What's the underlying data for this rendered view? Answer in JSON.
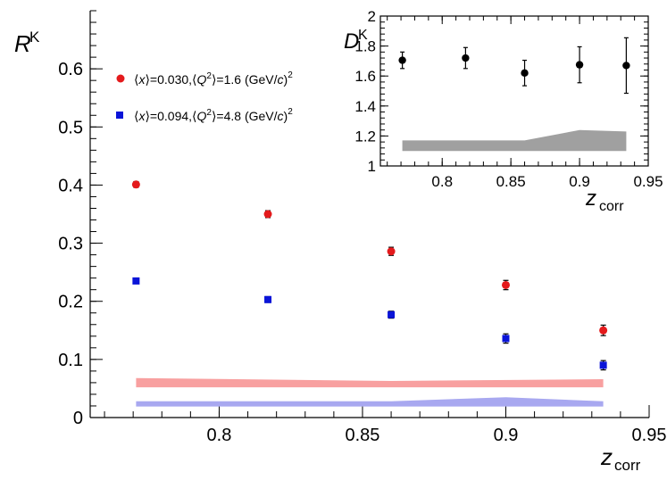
{
  "chart_data": [
    {
      "type": "scatter",
      "name": "main",
      "x_axis": {
        "range": [
          0.755,
          0.95
        ],
        "ticks": [
          0.8,
          0.85,
          0.9,
          0.95
        ],
        "tick_labels": [
          "0.8",
          "0.85",
          "0.9",
          "0.95"
        ],
        "label_main": "z",
        "label_sub": "corr"
      },
      "y_axis": {
        "range": [
          0,
          0.7
        ],
        "ticks": [
          0,
          0.1,
          0.2,
          0.3,
          0.4,
          0.5,
          0.6
        ],
        "tick_labels": [
          "0",
          "0.1",
          "0.2",
          "0.3",
          "0.4",
          "0.5",
          "0.6"
        ],
        "label_main": "R",
        "label_sub": "K"
      },
      "series": [
        {
          "name": "red",
          "color": "#e41a1c",
          "marker": "circle",
          "legend": {
            "x_open": "⟨",
            "x_var": "x",
            "x_close": "⟩=0.030,⟨",
            "q_var": "Q",
            "q_exp": "2",
            "q_close": "⟩=1.6 (GeV/",
            "c_var": "c",
            "tail": ")",
            "tail_exp": "2"
          },
          "x": [
            0.771,
            0.817,
            0.86,
            0.9,
            0.934
          ],
          "y": [
            0.401,
            0.35,
            0.286,
            0.228,
            0.15
          ],
          "err": [
            0.005,
            0.006,
            0.007,
            0.008,
            0.009
          ]
        },
        {
          "name": "blue",
          "color": "#0a14d8",
          "marker": "square",
          "legend": {
            "x_open": "⟨",
            "x_var": "x",
            "x_close": "⟩=0.094,⟨",
            "q_var": "Q",
            "q_exp": "2",
            "q_close": "⟩=4.8 (GeV/",
            "c_var": "c",
            "tail": ")",
            "tail_exp": "2"
          },
          "x": [
            0.771,
            0.817,
            0.86,
            0.9,
            0.934
          ],
          "y": [
            0.235,
            0.203,
            0.177,
            0.136,
            0.09
          ],
          "err": [
            0.004,
            0.005,
            0.006,
            0.008,
            0.008
          ]
        }
      ],
      "bands": [
        {
          "name": "red-sys",
          "color": "#f8a0a0",
          "x": [
            0.771,
            0.86,
            0.934
          ],
          "lower": [
            0.052,
            0.052,
            0.052
          ],
          "upper": [
            0.068,
            0.063,
            0.066
          ]
        },
        {
          "name": "blue-sys",
          "color": "#a8a8f0",
          "x": [
            0.771,
            0.86,
            0.9,
            0.934
          ],
          "lower": [
            0.019,
            0.019,
            0.019,
            0.019
          ],
          "upper": [
            0.028,
            0.028,
            0.035,
            0.028
          ]
        }
      ]
    },
    {
      "type": "scatter",
      "name": "inset",
      "x_axis": {
        "range": [
          0.755,
          0.95
        ],
        "ticks": [
          0.8,
          0.85,
          0.9,
          0.95
        ],
        "tick_labels": [
          "0.8",
          "0.85",
          "0.9",
          "0.95"
        ],
        "label_main": "z",
        "label_sub": "corr"
      },
      "y_axis": {
        "range": [
          1,
          2
        ],
        "ticks": [
          1,
          1.2,
          1.4,
          1.6,
          1.8,
          2
        ],
        "tick_labels": [
          "1",
          "1.2",
          "1.4",
          "1.6",
          "1.8",
          "2"
        ],
        "label_main": "D",
        "label_sub": "K"
      },
      "series": [
        {
          "name": "black",
          "color": "#000000",
          "marker": "circle",
          "x": [
            0.771,
            0.817,
            0.86,
            0.9,
            0.934
          ],
          "y": [
            1.705,
            1.72,
            1.62,
            1.675,
            1.67
          ],
          "err": [
            0.055,
            0.07,
            0.085,
            0.12,
            0.185
          ]
        }
      ],
      "bands": [
        {
          "name": "inset-sys",
          "color": "#a0a0a0",
          "x": [
            0.771,
            0.86,
            0.9,
            0.934
          ],
          "lower": [
            1.1,
            1.1,
            1.1,
            1.1
          ],
          "upper": [
            1.17,
            1.17,
            1.24,
            1.23
          ]
        }
      ]
    }
  ]
}
